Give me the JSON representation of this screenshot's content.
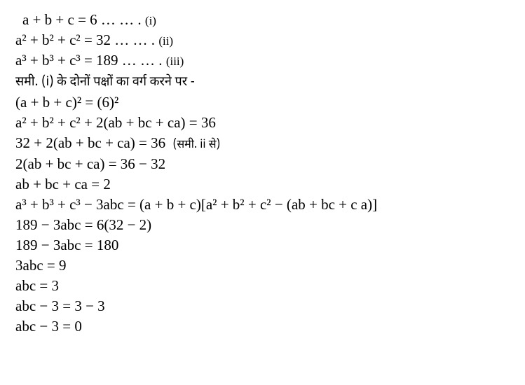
{
  "lines": {
    "l1": "a + b + c = 6 … … .",
    "l1r": "(i)",
    "l2": "a² + b² + c² = 32 … … .",
    "l2r": "(ii)",
    "l3": "a³ + b³ + c³ = 189 … … .",
    "l3r": "(iii)",
    "l4": "समी. (i) के दोनों पक्षों का वर्ग करने पर -",
    "l5": "(a + b + c)² = (6)²",
    "l6": "a² + b² + c² + 2(ab + bc + ca) = 36",
    "l7": "32 + 2(ab + bc + ca) = 36",
    "l7r": "(समी. ii से)",
    "l8": "2(ab + bc + ca) = 36 − 32",
    "l9": "ab + bc + ca = 2",
    "l10": "a³ + b³ + c³ − 3abc = (a + b + c)[a² + b² + c² − (ab + bc + c a)]",
    "l11": "189 − 3abc = 6(32 − 2)",
    "l12": "189 − 3abc = 180",
    "l13": "3abc = 9",
    "l14": "abc = 3",
    "l15": "abc − 3 = 3 − 3",
    "l16": "abc − 3 = 0"
  }
}
